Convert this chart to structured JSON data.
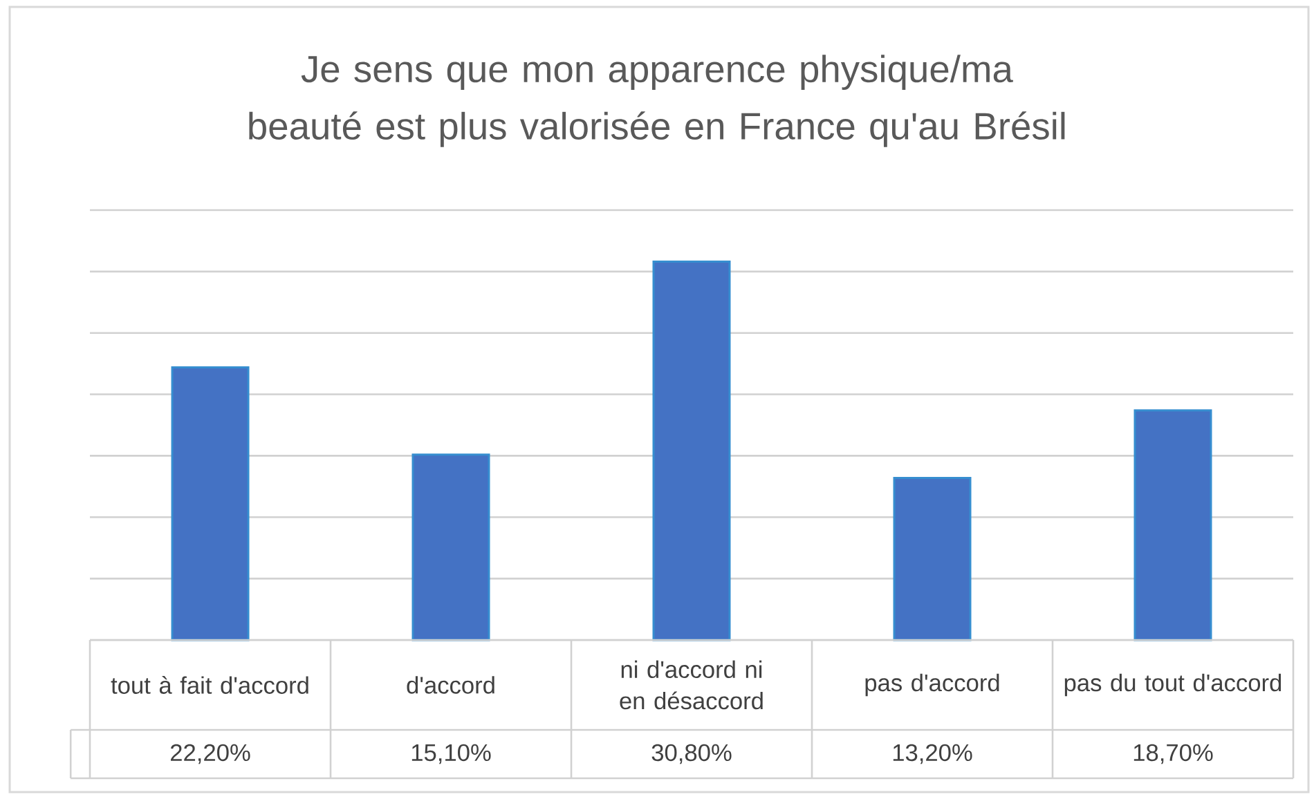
{
  "chart_data": {
    "type": "bar",
    "title": "Je sens que mon apparence physique/ma beauté est plus valorisée en France qu'au Brésil",
    "categories": [
      "tout à fait d'accord",
      "d'accord",
      "ni d'accord ni en désaccord",
      "pas d'accord",
      "pas du tout d'accord"
    ],
    "values": [
      22.2,
      15.1,
      30.8,
      13.2,
      18.7
    ],
    "value_labels": [
      "22,20%",
      "15,10%",
      "30,80%",
      "13,20%",
      "18,70%"
    ],
    "color": "#4472c4",
    "ylim": [
      0,
      35
    ],
    "yticks": [
      {
        "value": 0,
        "label": null
      },
      {
        "value": 5,
        "label": null
      },
      {
        "value": 10,
        "label": null
      },
      {
        "value": 15,
        "label": null
      },
      {
        "value": 20,
        "label": null
      },
      {
        "value": 25,
        "label": null
      },
      {
        "value": 30,
        "label": null
      },
      {
        "value": 35,
        "label": null
      }
    ],
    "grid": "y",
    "tick_labels": "x"
  }
}
